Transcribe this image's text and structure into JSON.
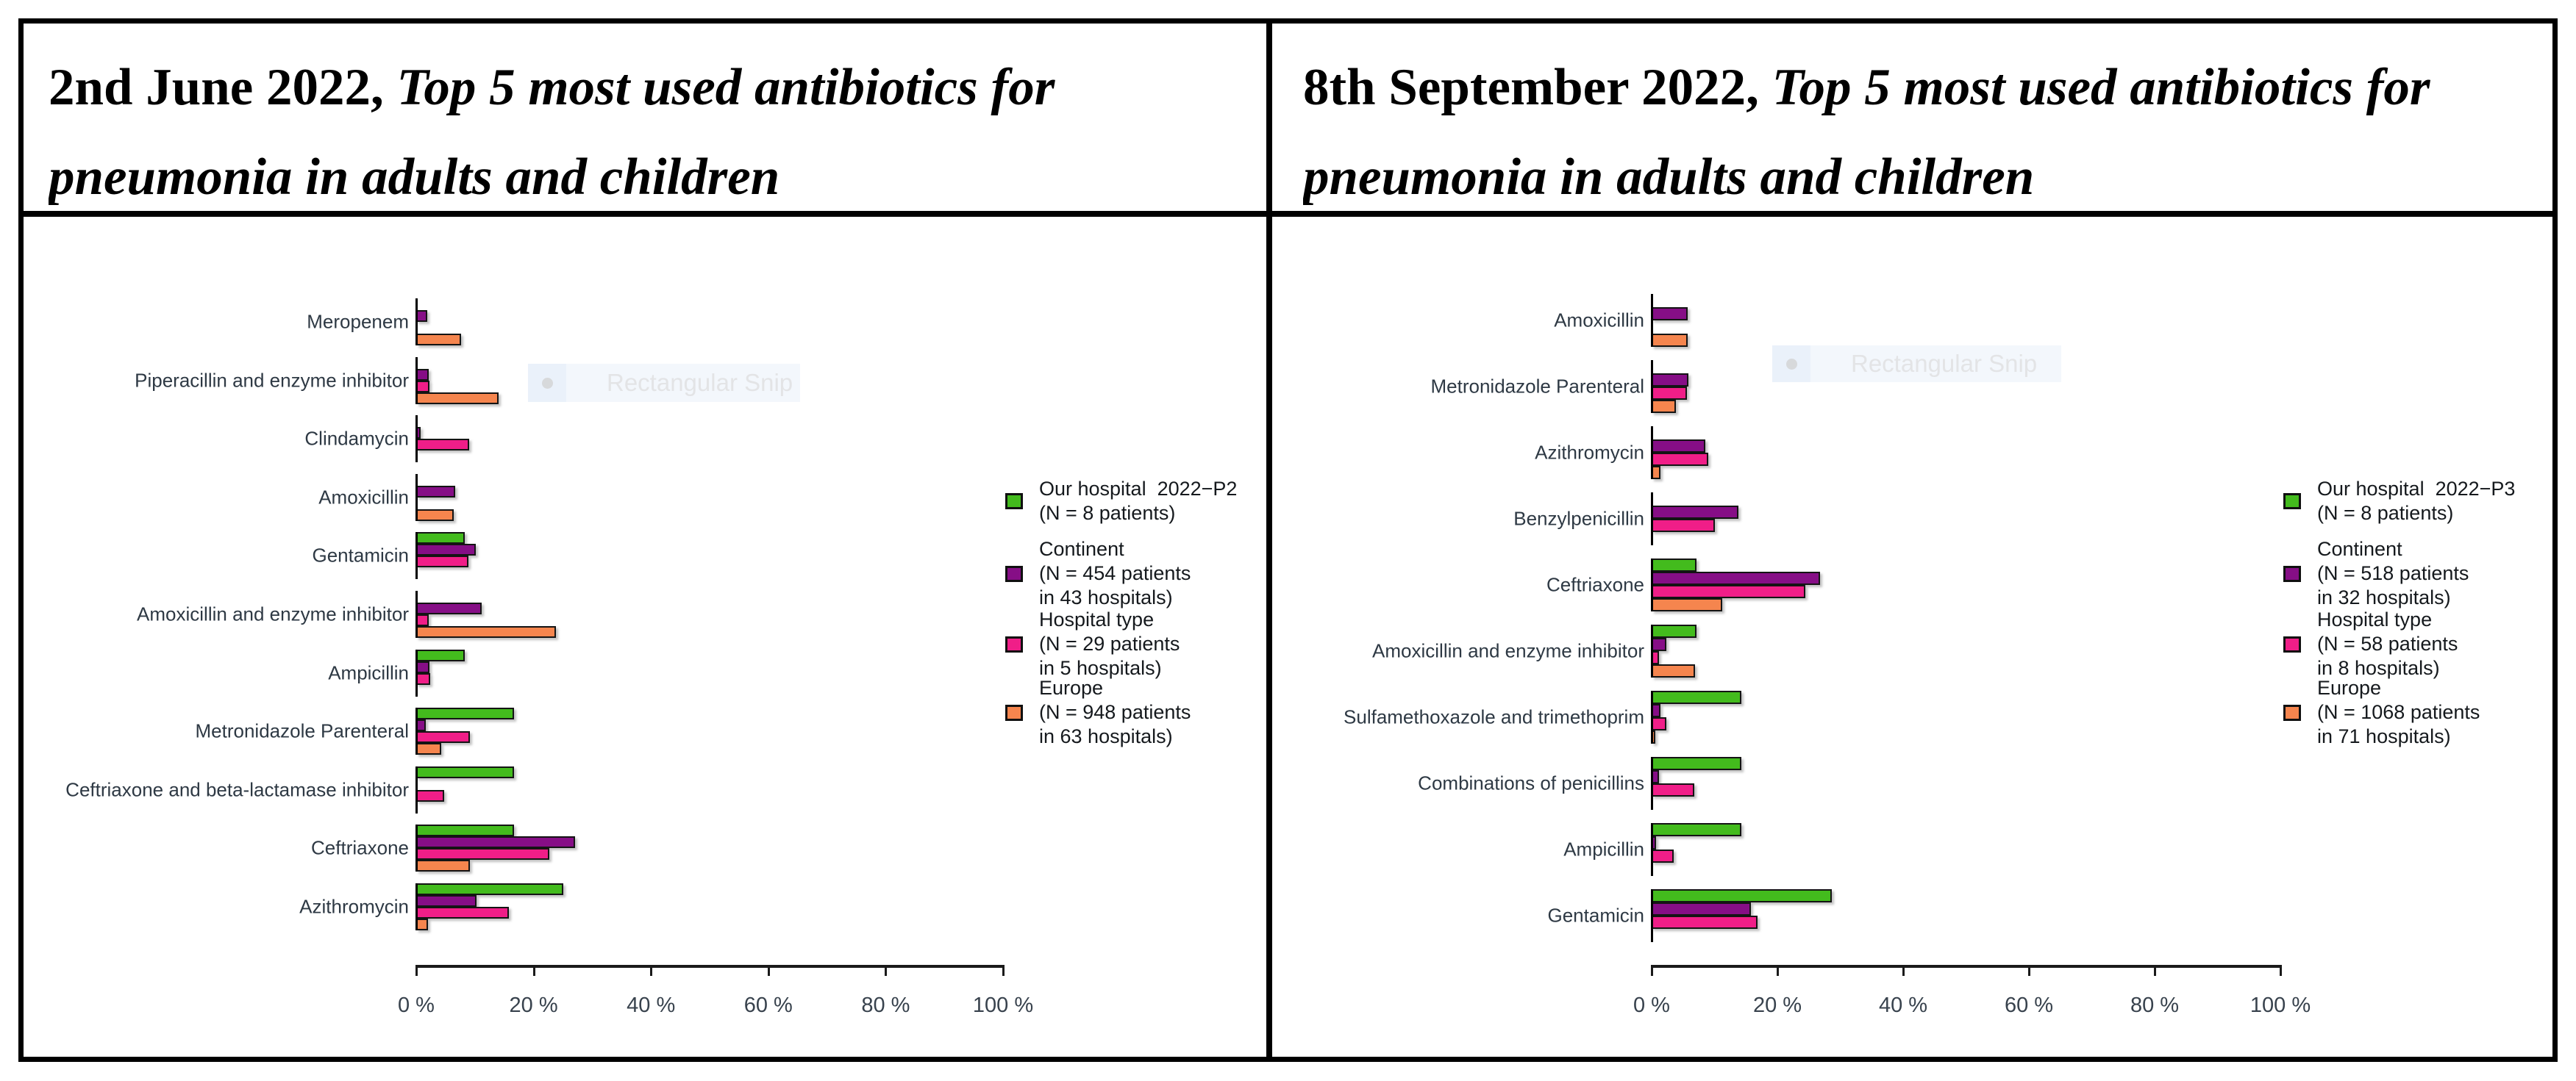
{
  "panels": [
    {
      "title": {
        "bold": "2nd June 2022,",
        "italic": " Top 5 most used antibiotics for pneumonia in adults and children"
      }
    },
    {
      "title": {
        "bold": "8th September 2022,",
        "italic": " Top 5 most used antibiotics for pneumonia in adults and children"
      }
    }
  ],
  "snip_overlay": {
    "label": "Rectangular Snip",
    "icon": "circle-icon"
  },
  "colors": {
    "our_hospital": "#43bb1d",
    "continent": "#860e86",
    "hospital_type": "#f01e88",
    "europe": "#f5854e",
    "bar_outline": "#141414",
    "axis": "#1a1a1a"
  },
  "chart_data": [
    {
      "type": "bar",
      "orientation": "horizontal",
      "panel": "left",
      "title": "2nd June 2022, Top 5 most used antibiotics for pneumonia in adults and children",
      "xlim": [
        0,
        100
      ],
      "xtick_labels": [
        "0 %",
        "20 %",
        "40 %",
        "60 %",
        "80 %",
        "100 %"
      ],
      "xtick_values": [
        0,
        20,
        40,
        60,
        80,
        100
      ],
      "grid": false,
      "legend_position": "right",
      "categories": [
        "Meropenem",
        "Piperacillin and enzyme inhibitor",
        "Clindamycin",
        "Amoxicillin",
        "Gentamicin",
        "Amoxicillin and enzyme inhibitor",
        "Ampicillin",
        "Metronidazole Parenteral",
        "Ceftriaxone and beta-lactamase inhibitor",
        "Ceftriaxone",
        "Azithromycin"
      ],
      "series": [
        {
          "name": "Our hospital 2022−P2 (N = 8 patients)",
          "key": "our_hospital",
          "values": [
            0,
            0,
            0,
            0,
            8.3,
            0,
            8.3,
            16.7,
            16.7,
            16.7,
            25.0
          ]
        },
        {
          "name": "Continent (N = 454 patients in 43 hospitals)",
          "key": "continent",
          "values": [
            1.9,
            2.1,
            0.7,
            6.6,
            10.2,
            11.2,
            2.2,
            1.6,
            0,
            27.1,
            10.3
          ]
        },
        {
          "name": "Hospital type (N = 29 patients in 5 hospitals)",
          "key": "hospital_type",
          "values": [
            0,
            2.2,
            9.0,
            0,
            8.9,
            2.1,
            2.4,
            9.1,
            4.7,
            22.7,
            15.8
          ]
        },
        {
          "name": "Europe (N = 948 patients in 63 hospitals)",
          "key": "europe",
          "values": [
            7.7,
            14.0,
            0,
            6.4,
            0,
            23.8,
            0,
            4.2,
            0,
            9.1,
            2.0
          ]
        }
      ],
      "legend": [
        {
          "key": "our_hospital",
          "lines": [
            "Our hospital  2022−P2",
            "(N = 8 patients)"
          ]
        },
        {
          "key": "continent",
          "lines": [
            "Continent",
            "(N = 454 patients",
            "in 43 hospitals)"
          ]
        },
        {
          "key": "hospital_type",
          "lines": [
            "Hospital type",
            "(N = 29 patients",
            "in 5 hospitals)"
          ]
        },
        {
          "key": "europe",
          "lines": [
            "Europe",
            "(N = 948 patients",
            "in 63 hospitals)"
          ]
        }
      ]
    },
    {
      "type": "bar",
      "orientation": "horizontal",
      "panel": "right",
      "title": "8th September 2022, Top 5 most used antibiotics for pneumonia in adults and children",
      "xlim": [
        0,
        100
      ],
      "xtick_labels": [
        "0 %",
        "20 %",
        "40 %",
        "60 %",
        "80 %",
        "100 %"
      ],
      "xtick_values": [
        0,
        20,
        40,
        60,
        80,
        100
      ],
      "grid": false,
      "legend_position": "right",
      "categories": [
        "Amoxicillin",
        "Metronidazole Parenteral",
        "Azithromycin",
        "Benzylpenicillin",
        "Ceftriaxone",
        "Amoxicillin and enzyme inhibitor",
        "Sulfamethoxazole and trimethoprim",
        "Combinations of penicillins",
        "Ampicillin",
        "Gentamicin"
      ],
      "series": [
        {
          "name": "Our hospital 2022−P3 (N = 8 patients)",
          "key": "our_hospital",
          "values": [
            0,
            0,
            0,
            0,
            7.1,
            7.1,
            14.3,
            14.3,
            14.3,
            28.6
          ]
        },
        {
          "name": "Continent (N = 518 patients in 32 hospitals)",
          "key": "continent",
          "values": [
            5.7,
            5.8,
            8.5,
            13.8,
            26.8,
            2.3,
            1.4,
            1.2,
            0.7,
            15.8
          ]
        },
        {
          "name": "Hospital type (N = 58 patients in 8 hospitals)",
          "key": "hospital_type",
          "values": [
            0,
            5.6,
            9.0,
            10.1,
            24.4,
            1.2,
            2.3,
            6.8,
            3.5,
            16.9
          ]
        },
        {
          "name": "Europe (N = 1068 patients in 71 hospitals)",
          "key": "europe",
          "values": [
            5.7,
            3.9,
            1.4,
            0,
            11.2,
            6.9,
            0.6,
            0,
            0,
            0
          ]
        }
      ],
      "legend": [
        {
          "key": "our_hospital",
          "lines": [
            "Our hospital  2022−P3",
            "(N = 8 patients)"
          ]
        },
        {
          "key": "continent",
          "lines": [
            "Continent",
            "(N = 518 patients",
            "in 32 hospitals)"
          ]
        },
        {
          "key": "hospital_type",
          "lines": [
            "Hospital type",
            "(N = 58 patients",
            "in 8 hospitals)"
          ]
        },
        {
          "key": "europe",
          "lines": [
            "Europe",
            "(N = 1068 patients",
            "in 71 hospitals)"
          ]
        }
      ]
    }
  ]
}
